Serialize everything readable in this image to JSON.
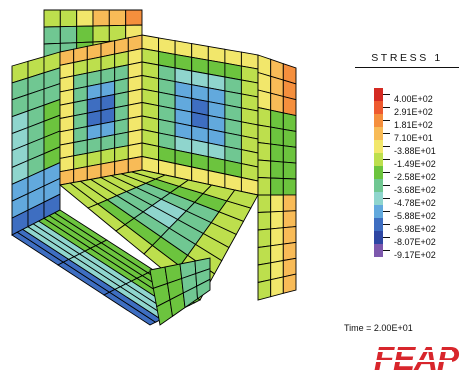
{
  "legend": {
    "title": "STRESS 1",
    "entries": [
      {
        "label": "4.00E+02",
        "color": "#d42a22"
      },
      {
        "label": "2.91E+02",
        "color": "#ee5a2f"
      },
      {
        "label": "1.81E+02",
        "color": "#f58f3d"
      },
      {
        "label": "7.10E+01",
        "color": "#f8bb57"
      },
      {
        "label": "-3.88E+01",
        "color": "#f2e76b"
      },
      {
        "label": "-1.49E+02",
        "color": "#bddf4d"
      },
      {
        "label": "-2.58E+02",
        "color": "#6cc43e"
      },
      {
        "label": "-3.68E+02",
        "color": "#70c792"
      },
      {
        "label": "-4.78E+02",
        "color": "#8fd5cd"
      },
      {
        "label": "-5.88E+02",
        "color": "#62a9dd"
      },
      {
        "label": "-6.98E+02",
        "color": "#3e6ec1"
      },
      {
        "label": "-8.07E+02",
        "color": "#2e47a3"
      },
      {
        "label": "-9.17E+02",
        "color": "#7d58ad"
      }
    ]
  },
  "time_label": "Time = 2.00E+01",
  "logo_text": "FEAP",
  "colors": {
    "logo": "#d8262c",
    "mesh_line": "#000000"
  }
}
